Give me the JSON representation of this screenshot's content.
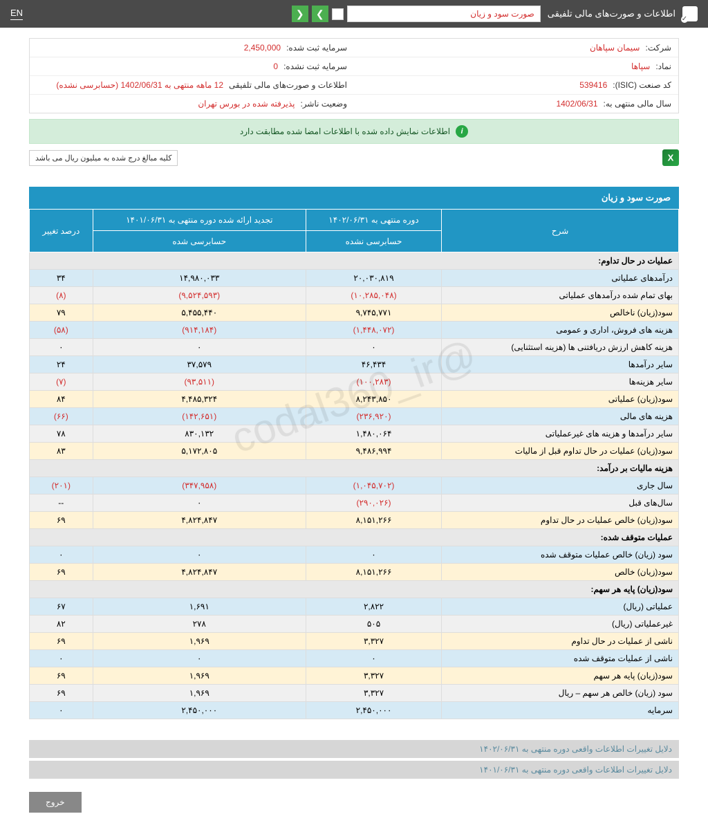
{
  "topbar": {
    "title": "اطلاعات و صورت‌های مالی تلفیقی",
    "dropdown": "صورت سود و زیان",
    "lang": "EN"
  },
  "info": {
    "company_label": "شرکت:",
    "company_value": "سیمان سپاهان",
    "capital_reg_label": "سرمایه ثبت شده:",
    "capital_reg_value": "2,450,000",
    "symbol_label": "نماد:",
    "symbol_value": "سپاها",
    "capital_unreg_label": "سرمایه ثبت نشده:",
    "capital_unreg_value": "0",
    "isic_label": "کد صنعت (ISIC):",
    "isic_value": "539416",
    "statements_label": "اطلاعات و صورت‌های مالی تلفیقی",
    "statements_value": "12 ماهه منتهی به 1402/06/31 (حسابرسی نشده)",
    "fiscal_label": "سال مالی منتهی به:",
    "fiscal_value": "1402/06/31",
    "status_label": "وضعیت ناشر:",
    "status_value": "پذیرفته شده در بورس تهران"
  },
  "notice": "اطلاعات نمایش داده شده با اطلاعات امضا شده مطابقت دارد",
  "note": "کلیه مبالغ درج شده به میلیون ریال می باشد",
  "section_title": "صورت سود و زیان",
  "headers": {
    "desc": "شرح",
    "period1": "دوره منتهی به ۱۴۰۲/۰۶/۳۱",
    "period2": "تجدید ارائه شده دوره منتهی به ۱۴۰۱/۰۶/۳۱",
    "change": "درصد تغییر",
    "sub1": "حسابرسی نشده",
    "sub2": "حسابرسی شده"
  },
  "rows": [
    {
      "type": "header",
      "desc": "عملیات در حال تداوم:"
    },
    {
      "type": "blue",
      "desc": "درآمدهای عملیاتی",
      "c1": "۲۰,۰۳۰,۸۱۹",
      "c2": "۱۴,۹۸۰,۰۳۳",
      "c3": "۳۴"
    },
    {
      "type": "gray",
      "desc": "بهای تمام شده درآمدهای عملیاتی",
      "c1": "(۱۰,۲۸۵,۰۴۸)",
      "c2": "(۹,۵۲۴,۵۹۳)",
      "c3": "(۸)",
      "neg": true
    },
    {
      "type": "yellow",
      "desc": "سود(زیان) ناخالص",
      "c1": "۹,۷۴۵,۷۷۱",
      "c2": "۵,۴۵۵,۴۴۰",
      "c3": "۷۹"
    },
    {
      "type": "blue",
      "desc": "هزینه های فروش، اداری و عمومی",
      "c1": "(۱,۴۴۸,۰۷۲)",
      "c2": "(۹۱۴,۱۸۴)",
      "c3": "(۵۸)",
      "neg": true
    },
    {
      "type": "gray",
      "desc": "هزینه کاهش ارزش دریافتنی ها (هزینه استثنایی)",
      "c1": "۰",
      "c2": "۰",
      "c3": "۰"
    },
    {
      "type": "blue",
      "desc": "سایر درآمدها",
      "c1": "۴۶,۴۳۴",
      "c2": "۳۷,۵۷۹",
      "c3": "۲۴"
    },
    {
      "type": "gray",
      "desc": "سایر هزینه‌ها",
      "c1": "(۱۰۰,۲۸۳)",
      "c2": "(۹۳,۵۱۱)",
      "c3": "(۷)",
      "neg": true
    },
    {
      "type": "yellow",
      "desc": "سود(زیان) عملیاتی",
      "c1": "۸,۲۴۳,۸۵۰",
      "c2": "۴,۴۸۵,۳۲۴",
      "c3": "۸۴"
    },
    {
      "type": "blue",
      "desc": "هزینه های مالی",
      "c1": "(۲۳۶,۹۲۰)",
      "c2": "(۱۴۲,۶۵۱)",
      "c3": "(۶۶)",
      "neg": true
    },
    {
      "type": "gray",
      "desc": "سایر درآمدها و هزینه های غیرعملیاتی",
      "c1": "۱,۴۸۰,۰۶۴",
      "c2": "۸۳۰,۱۳۲",
      "c3": "۷۸"
    },
    {
      "type": "yellow",
      "desc": "سود(زیان) عملیات در حال تداوم قبل از مالیات",
      "c1": "۹,۴۸۶,۹۹۴",
      "c2": "۵,۱۷۲,۸۰۵",
      "c3": "۸۳"
    },
    {
      "type": "header",
      "desc": "هزینه مالیات بر درآمد:"
    },
    {
      "type": "blue",
      "desc": "سال جاری",
      "c1": "(۱,۰۴۵,۷۰۲)",
      "c2": "(۳۴۷,۹۵۸)",
      "c3": "(۲۰۱)",
      "neg": true
    },
    {
      "type": "gray",
      "desc": "سال‌های قبل",
      "c1": "(۲۹۰,۰۲۶)",
      "c2": "۰",
      "c3": "--",
      "neg1": true
    },
    {
      "type": "yellow",
      "desc": "سود(زیان) خالص عملیات در حال تداوم",
      "c1": "۸,۱۵۱,۲۶۶",
      "c2": "۴,۸۲۴,۸۴۷",
      "c3": "۶۹"
    },
    {
      "type": "header",
      "desc": "عملیات متوقف شده:"
    },
    {
      "type": "blue",
      "desc": "سود (زیان) خالص عملیات متوقف شده",
      "c1": "۰",
      "c2": "۰",
      "c3": "۰"
    },
    {
      "type": "yellow",
      "desc": "سود(زیان) خالص",
      "c1": "۸,۱۵۱,۲۶۶",
      "c2": "۴,۸۲۴,۸۴۷",
      "c3": "۶۹"
    },
    {
      "type": "header",
      "desc": "سود(زیان) پایه هر سهم:"
    },
    {
      "type": "blue",
      "desc": "عملیاتی (ریال)",
      "c1": "۲,۸۲۲",
      "c2": "۱,۶۹۱",
      "c3": "۶۷"
    },
    {
      "type": "gray",
      "desc": "غیرعملیاتی (ریال)",
      "c1": "۵۰۵",
      "c2": "۲۷۸",
      "c3": "۸۲"
    },
    {
      "type": "yellow",
      "desc": "ناشی از عملیات در حال تداوم",
      "c1": "۳,۳۲۷",
      "c2": "۱,۹۶۹",
      "c3": "۶۹"
    },
    {
      "type": "blue",
      "desc": "ناشی از عملیات متوقف شده",
      "c1": "۰",
      "c2": "۰",
      "c3": "۰"
    },
    {
      "type": "yellow",
      "desc": "سود(زیان) پایه هر سهم",
      "c1": "۳,۳۲۷",
      "c2": "۱,۹۶۹",
      "c3": "۶۹"
    },
    {
      "type": "gray",
      "desc": "سود (زیان) خالص هر سهم – ریال",
      "c1": "۳,۳۲۷",
      "c2": "۱,۹۶۹",
      "c3": "۶۹"
    },
    {
      "type": "blue",
      "desc": "سرمایه",
      "c1": "۲,۴۵۰,۰۰۰",
      "c2": "۲,۴۵۰,۰۰۰",
      "c3": "۰"
    }
  ],
  "footer1": "دلایل تغییرات اطلاعات واقعی دوره منتهی به ۱۴۰۲/۰۶/۳۱",
  "footer2": "دلایل تغییرات اطلاعات واقعی دوره منتهی به ۱۴۰۱/۰۶/۳۱",
  "exit": "خروج",
  "watermark": "@codal360_ir"
}
